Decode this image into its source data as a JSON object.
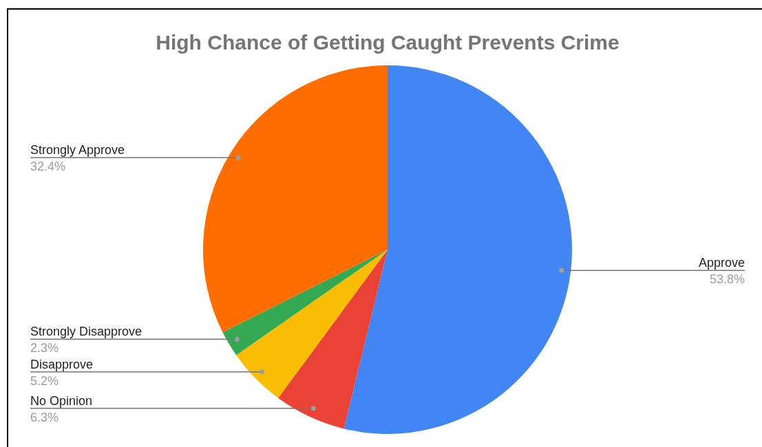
{
  "chart_data": {
    "type": "pie",
    "title": "High Chance of Getting Caught Prevents Crime",
    "categories": [
      "Approve",
      "No Opinion",
      "Disapprove",
      "Strongly Disapprove",
      "Strongly Approve"
    ],
    "values": [
      53.8,
      6.3,
      5.2,
      2.3,
      32.4
    ],
    "colors": [
      "#4285f4",
      "#ea4335",
      "#fbbc04",
      "#34a853",
      "#ff6d01"
    ],
    "value_labels": [
      "53.8%",
      "6.3%",
      "5.2%",
      "2.3%",
      "32.4%"
    ]
  }
}
